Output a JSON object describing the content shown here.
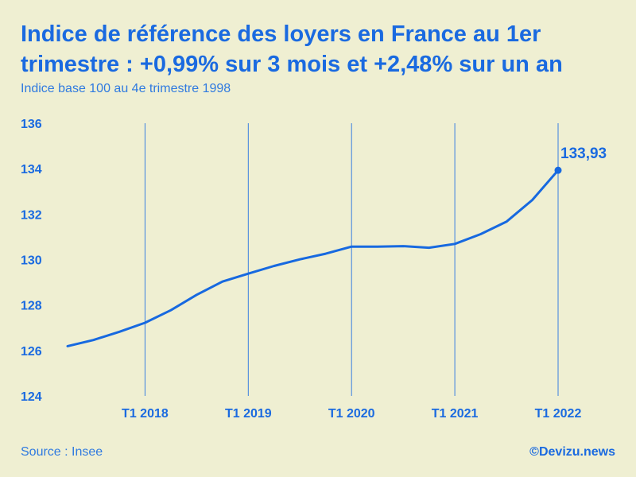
{
  "title": "Indice de référence des loyers en France au 1er trimestre : +0,99% sur 3 mois et +2,48% sur un an",
  "subtitle": "Indice base 100 au 4e trimestre 1998",
  "source": "Source : Insee",
  "credit": "©Devizu.news",
  "colors": {
    "background": "#efefd2",
    "accent": "#1a6ae0",
    "line": "#1769e0"
  },
  "chart_data": {
    "type": "line",
    "title": "Indice de référence des loyers en France au 1er trimestre : +0,99% sur 3 mois et +2,48% sur un an",
    "subtitle": "Indice base 100 au 4e trimestre 1998",
    "xlabel": "",
    "ylabel": "",
    "x": [
      "T2 2017",
      "T3 2017",
      "T4 2017",
      "T1 2018",
      "T2 2018",
      "T3 2018",
      "T4 2018",
      "T1 2019",
      "T2 2019",
      "T3 2019",
      "T4 2019",
      "T1 2020",
      "T2 2020",
      "T3 2020",
      "T4 2020",
      "T1 2021",
      "T2 2021",
      "T3 2021",
      "T4 2021",
      "T1 2022"
    ],
    "values": [
      126.19,
      126.46,
      126.82,
      127.22,
      127.77,
      128.45,
      129.03,
      129.38,
      129.72,
      130.01,
      130.26,
      130.57,
      130.57,
      130.59,
      130.52,
      130.69,
      131.12,
      131.67,
      132.62,
      133.93
    ],
    "x_tick_labels": [
      "T1 2018",
      "T1 2019",
      "T1 2020",
      "T1 2021",
      "T1 2022"
    ],
    "y_ticks": [
      "124",
      "126",
      "128",
      "130",
      "132",
      "134",
      "136"
    ],
    "ylim": [
      124,
      136
    ],
    "grid": "vertical lines at T1 of each year",
    "end_label": "133,93",
    "legend": "none"
  }
}
